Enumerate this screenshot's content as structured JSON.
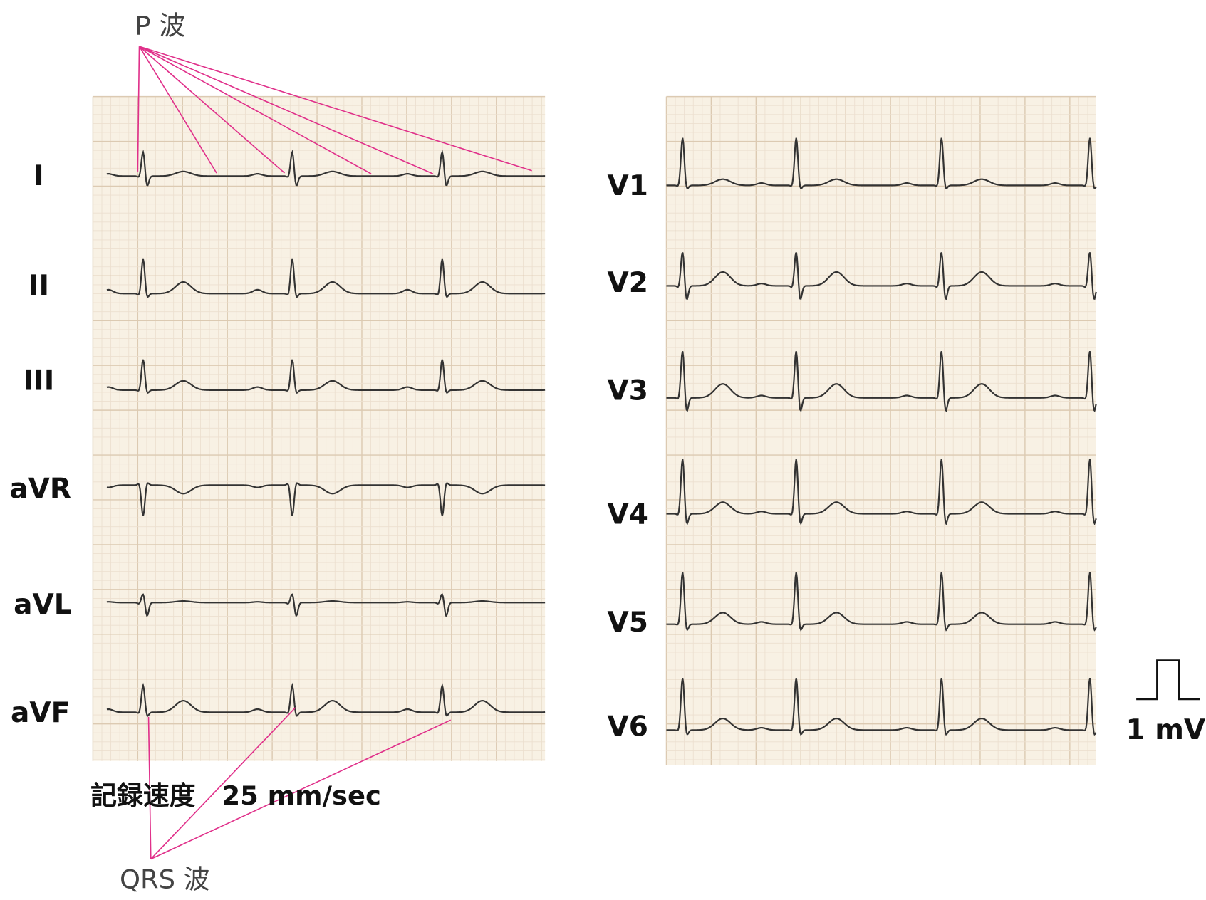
{
  "p_wave_label": "P 波",
  "qrs_label": "QRS 波",
  "speed": "記録速度　25 mm/sec",
  "calibration": "1 mV",
  "limb_leads": [
    "I",
    "II",
    "III",
    "aVR",
    "aVL",
    "aVF"
  ],
  "chest_leads": [
    "V1",
    "V2",
    "V3",
    "V4",
    "V5",
    "V6"
  ]
}
